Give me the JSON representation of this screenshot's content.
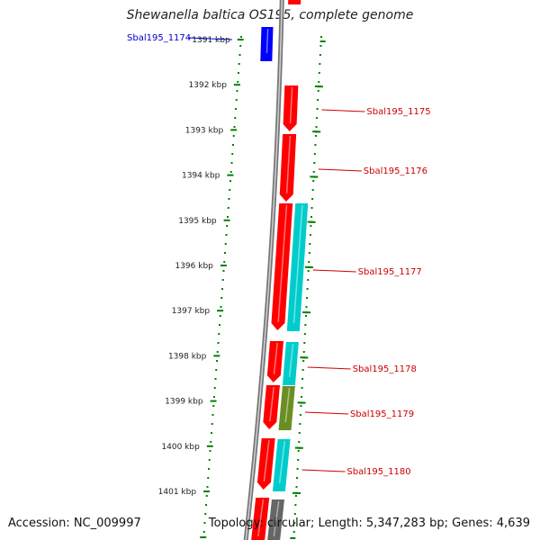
{
  "title": "Shewanella baltica OS195, complete genome",
  "accession": "Accession: NC_009997",
  "topology": "Topology: circular; Length: 5,347,283 bp; Genes: 4,639",
  "colors": {
    "strand_plus": "#ff0000",
    "strand_minus_gene": "#0000ff",
    "track_teal": "#00cccc",
    "track_olive": "#6b8e23",
    "track_grey": "#666666",
    "ruler": "#008000",
    "label_red": "#cc0000",
    "label_blue": "#0000cc"
  },
  "ruler_labels": [
    "1391 kbp",
    "1392 kbp",
    "1393 kbp",
    "1394 kbp",
    "1395 kbp",
    "1396 kbp",
    "1397 kbp",
    "1398 kbp",
    "1399 kbp",
    "1400 kbp",
    "1401 kbp"
  ],
  "genes": [
    {
      "label": "Sbal195_1174",
      "strand": "minus"
    },
    {
      "label": "Sbal195_1175",
      "strand": "plus"
    },
    {
      "label": "Sbal195_1176",
      "strand": "plus"
    },
    {
      "label": "Sbal195_1177",
      "strand": "plus"
    },
    {
      "label": "Sbal195_1178",
      "strand": "plus"
    },
    {
      "label": "Sbal195_1179",
      "strand": "plus"
    },
    {
      "label": "Sbal195_1180",
      "strand": "plus"
    }
  ]
}
